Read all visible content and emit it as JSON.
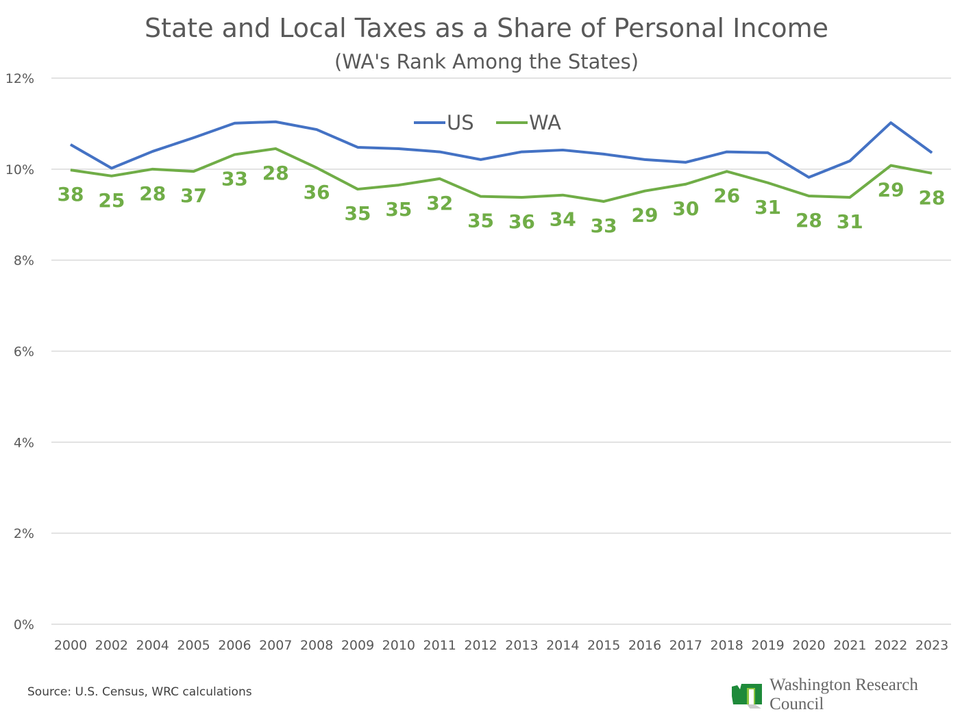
{
  "chart_data": {
    "type": "line",
    "title": "State and Local Taxes as a Share of Personal Income",
    "subtitle": "(WA's Rank Among the States)",
    "categories": [
      "2000",
      "2002",
      "2004",
      "2005",
      "2006",
      "2007",
      "2008",
      "2009",
      "2010",
      "2011",
      "2012",
      "2013",
      "2014",
      "2015",
      "2016",
      "2017",
      "2018",
      "2019",
      "2020",
      "2021",
      "2022",
      "2023"
    ],
    "series": [
      {
        "name": "US",
        "color": "#4472C4",
        "values": [
          10.54,
          10.02,
          10.39,
          10.69,
          11.01,
          11.04,
          10.87,
          10.48,
          10.45,
          10.38,
          10.21,
          10.38,
          10.42,
          10.33,
          10.21,
          10.15,
          10.38,
          10.36,
          9.82,
          10.18,
          11.02,
          10.36
        ]
      },
      {
        "name": "WA",
        "color": "#70AD47",
        "values": [
          9.98,
          9.85,
          10.0,
          9.95,
          10.32,
          10.45,
          10.03,
          9.56,
          9.65,
          9.79,
          9.4,
          9.38,
          9.43,
          9.29,
          9.52,
          9.67,
          9.95,
          9.7,
          9.41,
          9.38,
          10.08,
          9.91
        ],
        "data_labels": [
          "38",
          "25",
          "28",
          "37",
          "33",
          "28",
          "36",
          "35",
          "35",
          "32",
          "35",
          "36",
          "34",
          "33",
          "29",
          "30",
          "26",
          "31",
          "28",
          "31",
          "29",
          "28"
        ]
      }
    ],
    "ylim": [
      0,
      12
    ],
    "yticks": [
      "0%",
      "2%",
      "4%",
      "6%",
      "8%",
      "10%",
      "12%"
    ],
    "ytick_values": [
      0,
      2,
      4,
      6,
      8,
      10,
      12
    ],
    "grid": true,
    "legend_position": "top-center"
  },
  "footer": {
    "source": "Source: U.S. Census, WRC calculations",
    "logo_text": "Washington Research Council"
  }
}
